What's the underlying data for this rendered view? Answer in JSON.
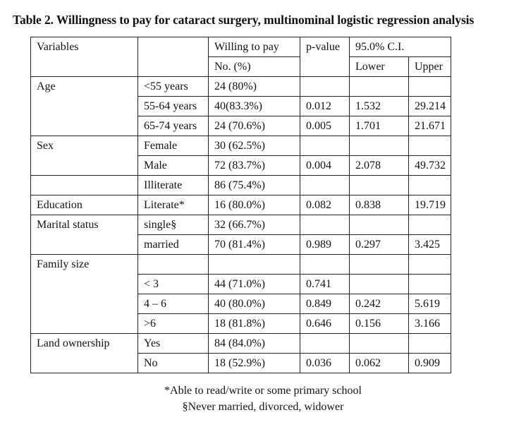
{
  "title": "Table 2. Willingness to pay for cataract surgery, multinominal logistic regression analysis",
  "header": {
    "variables": "Variables",
    "willing": "Willing to pay",
    "no_pct": "No. (%)",
    "pvalue": "p-value",
    "ci": "95.0% C.I.",
    "lower": "Lower",
    "upper": "Upper"
  },
  "rows": [
    {
      "var": "Age",
      "cat": "<55 years",
      "n": "24 (80%)",
      "p": "",
      "lo": "",
      "up": ""
    },
    {
      "var": "",
      "cat": "55-64 years",
      "n": "40(83.3%)",
      "p": "0.012",
      "lo": "1.532",
      "up": "29.214"
    },
    {
      "var": "",
      "cat": "65-74 years",
      "n": "24 (70.6%)",
      "p": "0.005",
      "lo": "1.701",
      "up": "21.671"
    },
    {
      "var": "Sex",
      "cat": "Female",
      "n": "30 (62.5%)",
      "p": "",
      "lo": "",
      "up": ""
    },
    {
      "var": "",
      "cat": "Male",
      "n": "72 (83.7%)",
      "p": "0.004",
      "lo": "2.078",
      "up": "49.732"
    },
    {
      "var": "",
      "cat": "Illiterate",
      "n": "86 (75.4%)",
      "p": "",
      "lo": "",
      "up": ""
    },
    {
      "var": "Education",
      "cat": "Literate*",
      "n": "16 (80.0%)",
      "p": "0.082",
      "lo": "0.838",
      "up": "19.719"
    },
    {
      "var": "Marital status",
      "cat": "single§",
      "n": "32 (66.7%)",
      "p": "",
      "lo": "",
      "up": ""
    },
    {
      "var": "",
      "cat": "married",
      "n": "70 (81.4%)",
      "p": "0.989",
      "lo": "0.297",
      "up": "3.425"
    },
    {
      "var": "Family size",
      "cat": "",
      "n": "",
      "p": "",
      "lo": "",
      "up": ""
    },
    {
      "var": "",
      "cat": "< 3",
      "n": "44 (71.0%)",
      "p": "0.741",
      "lo": "",
      "up": ""
    },
    {
      "var": "",
      "cat": "4 – 6",
      "n": "40 (80.0%)",
      "p": "0.849",
      "lo": "0.242",
      "up": "5.619"
    },
    {
      "var": "",
      "cat": ">6",
      "n": "18 (81.8%)",
      "p": "0.646",
      "lo": "0.156",
      "up": "3.166"
    },
    {
      "var": "Land ownership",
      "cat": "Yes",
      "n": "84 (84.0%)",
      "p": "",
      "lo": "",
      "up": ""
    },
    {
      "var": "",
      "cat": "No",
      "n": "18 (52.9%)",
      "p": "0.036",
      "lo": "0.062",
      "up": "0.909"
    }
  ],
  "notes": [
    "*Able to read/write or some primary school",
    "§Never married, divorced, widower"
  ]
}
